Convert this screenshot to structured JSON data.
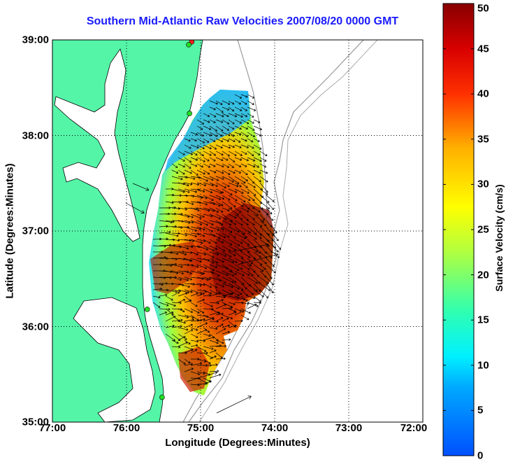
{
  "title": "Southern Mid-Atlantic Raw Velocities 2007/08/20 0000 GMT",
  "xlabel": "Longitude (Degrees:Minutes)",
  "ylabel": "Latitude (Degrees:Minutes)",
  "colorbar": {
    "label": "Surface Velocity (cm/s)",
    "ticks": [
      "0",
      "5",
      "10",
      "15",
      "20",
      "25",
      "30",
      "35",
      "40",
      "45",
      "50"
    ],
    "range": [
      0,
      50
    ]
  },
  "axes": {
    "x_ticks": [
      "77:00",
      "76:00",
      "75:00",
      "74:00",
      "73:00",
      "72:00"
    ],
    "y_ticks": [
      "39:00",
      "38:00",
      "37:00",
      "36:00",
      "35:00"
    ],
    "xlim_lon_west": [
      77,
      72
    ],
    "ylim_lat": [
      35,
      39
    ],
    "grid": "dotted"
  },
  "colors": {
    "land": "#55f5a8",
    "title": "#1a1aff",
    "coast": "#000000",
    "bathymetry": "#999999",
    "station": "#22dd22",
    "station_alt": "#ff2020"
  },
  "stations": [
    {
      "lon": 75.12,
      "lat": 38.98,
      "color": "station_alt"
    },
    {
      "lon": 75.16,
      "lat": 38.95,
      "color": "station"
    },
    {
      "lon": 75.15,
      "lat": 38.23,
      "color": "station"
    },
    {
      "lon": 75.72,
      "lat": 36.18,
      "color": "station"
    },
    {
      "lon": 75.52,
      "lat": 35.26,
      "color": "station"
    }
  ]
}
